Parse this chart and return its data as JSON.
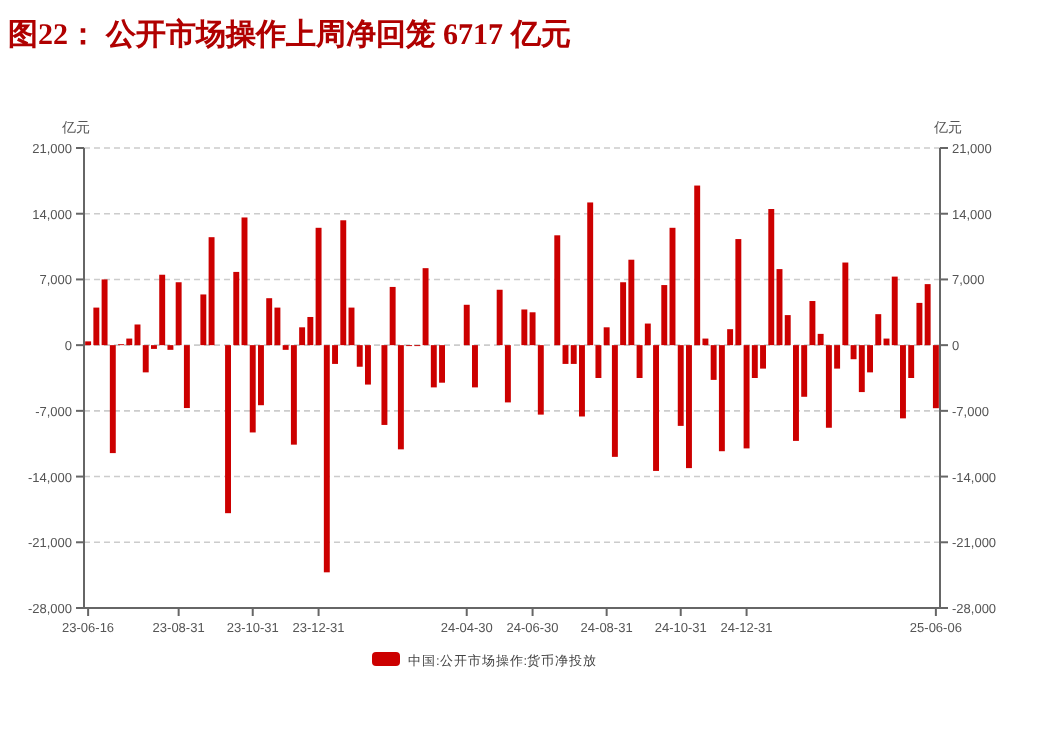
{
  "chart_data": {
    "type": "bar",
    "title": "图22：  公开市场操作上周净回笼 6717 亿元",
    "categories": [
      "23-06-16",
      null,
      null,
      null,
      null,
      null,
      null,
      null,
      null,
      null,
      null,
      "23-08-31",
      null,
      null,
      null,
      null,
      null,
      null,
      null,
      null,
      "23-10-31",
      null,
      null,
      null,
      null,
      null,
      null,
      null,
      "23-12-31",
      null,
      null,
      null,
      null,
      null,
      null,
      null,
      null,
      null,
      null,
      null,
      null,
      null,
      null,
      null,
      null,
      null,
      "24-04-30",
      null,
      null,
      null,
      null,
      null,
      null,
      null,
      "24-06-30",
      null,
      null,
      null,
      null,
      null,
      null,
      null,
      null,
      "24-08-31",
      null,
      null,
      null,
      null,
      null,
      null,
      null,
      null,
      "24-10-31",
      null,
      null,
      null,
      null,
      null,
      null,
      null,
      "24-12-31",
      null,
      null,
      null,
      null,
      null,
      null,
      null,
      null,
      null,
      null,
      null,
      null,
      null,
      null,
      null,
      null,
      null,
      null,
      null,
      null,
      null,
      null,
      "25-06-06"
    ],
    "series": [
      {
        "name": "中国:公开市场操作:货币净投放",
        "color": "#cc0000",
        "values": [
          400,
          4000,
          7000,
          -11500,
          100,
          700,
          2200,
          -2900,
          -400,
          7500,
          -500,
          6700,
          -6700,
          0,
          5400,
          11500,
          0,
          -17900,
          7800,
          13600,
          -9300,
          -6400,
          5000,
          4000,
          -500,
          -10600,
          1900,
          3000,
          12500,
          -24200,
          -2000,
          13300,
          4000,
          -2300,
          -4200,
          0,
          -8500,
          6200,
          -11100,
          -100,
          -100,
          8200,
          -4500,
          -4000,
          0,
          0,
          4300,
          -4500,
          0,
          0,
          5900,
          -6100,
          0,
          3800,
          3500,
          -7400,
          0,
          11700,
          -2000,
          -2000,
          -7600,
          15200,
          -3500,
          1900,
          -11900,
          6700,
          9100,
          -3500,
          2300,
          -13400,
          6400,
          12500,
          -8600,
          -13100,
          17000,
          700,
          -3700,
          -11300,
          1700,
          11300,
          -11000,
          -3500,
          -2500,
          14500,
          8100,
          3200,
          -10200,
          -5500,
          4700,
          1200,
          -8800,
          -2500,
          8800,
          -1500,
          -5000,
          -2900,
          3300,
          700,
          7300,
          -7800,
          -3500,
          4500,
          6500,
          -6717
        ]
      }
    ],
    "ylabel": "亿元",
    "y2label": "亿元",
    "ylim": [
      -28000,
      21000
    ],
    "yticks": [
      {
        "value": -28000,
        "label": "-28,000"
      },
      {
        "value": -21000,
        "label": "-21,000"
      },
      {
        "value": -14000,
        "label": "-14,000"
      },
      {
        "value": -7000,
        "label": "-7,000"
      },
      0,
      {
        "value": 7000,
        "label": "7,000"
      },
      {
        "value": 14000,
        "label": "14,000"
      },
      {
        "value": 21000,
        "label": "21,000"
      }
    ],
    "y2lim": [
      -28000,
      21000
    ],
    "y2ticks": [
      {
        "value": -28000,
        "label": "-28,000"
      },
      {
        "value": -21000,
        "label": "-21,000"
      },
      {
        "value": -14000,
        "label": "-14,000"
      },
      {
        "value": -7000,
        "label": "-7,000"
      },
      0,
      {
        "value": 7000,
        "label": "7,000"
      },
      {
        "value": 14000,
        "label": "14,000"
      },
      {
        "value": 21000,
        "label": "21,000"
      }
    ],
    "grid": "y",
    "legend": "bottom"
  }
}
